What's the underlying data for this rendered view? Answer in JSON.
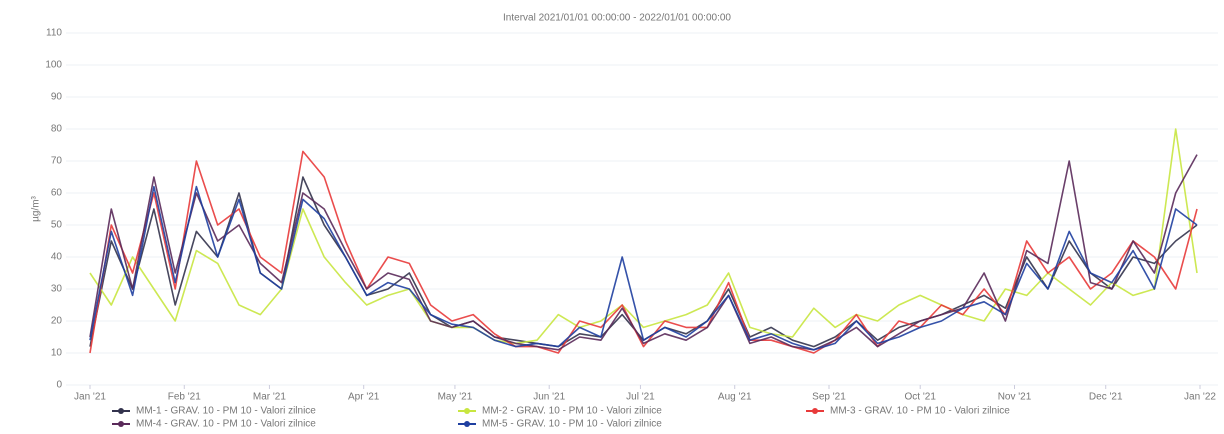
{
  "chart_data": {
    "type": "line",
    "title": "Interval 2021/01/01 00:00:00 - 2022/01/01 00:00:00",
    "y_label": "µg/m³",
    "x": [
      0,
      7,
      14,
      21,
      28,
      35,
      42,
      49,
      56,
      63,
      70,
      77,
      84,
      91,
      98,
      105,
      112,
      119,
      126,
      133,
      140,
      147,
      154,
      161,
      168,
      175,
      182,
      189,
      196,
      203,
      210,
      217,
      224,
      231,
      238,
      245,
      252,
      259,
      266,
      273,
      280,
      287,
      294,
      301,
      308,
      315,
      322,
      329,
      336,
      343,
      350,
      357,
      364
    ],
    "xlim": [
      0,
      365
    ],
    "xticks": [
      {
        "value": 0,
        "label": "Jan '21"
      },
      {
        "value": 31,
        "label": "Feb '21"
      },
      {
        "value": 59,
        "label": "Mar '21"
      },
      {
        "value": 90,
        "label": "Apr '21"
      },
      {
        "value": 120,
        "label": "May '21"
      },
      {
        "value": 151,
        "label": "Jun '21"
      },
      {
        "value": 181,
        "label": "Jul '21"
      },
      {
        "value": 212,
        "label": "Aug '21"
      },
      {
        "value": 243,
        "label": "Sep '21"
      },
      {
        "value": 273,
        "label": "Oct '21"
      },
      {
        "value": 304,
        "label": "Nov '21"
      },
      {
        "value": 334,
        "label": "Dec '21"
      },
      {
        "value": 365,
        "label": "Jan '22"
      }
    ],
    "ylim": [
      0,
      110
    ],
    "yticks": [
      0,
      10,
      20,
      30,
      40,
      50,
      60,
      70,
      80,
      90,
      100,
      110
    ],
    "grid": true,
    "series": [
      {
        "name": "MM-1 - GRAV. 10 - PM 10 - Valori zilnice",
        "color": "#33334d",
        "values": [
          12,
          45,
          30,
          55,
          25,
          48,
          40,
          60,
          35,
          30,
          65,
          50,
          40,
          28,
          30,
          35,
          22,
          18,
          20,
          15,
          14,
          13,
          12,
          16,
          15,
          22,
          14,
          18,
          16,
          20,
          30,
          15,
          18,
          14,
          12,
          15,
          20,
          14,
          18,
          20,
          22,
          25,
          28,
          24,
          40,
          30,
          45,
          35,
          30,
          40,
          38,
          45,
          50
        ]
      },
      {
        "name": "MM-2 - GRAV. 10 - PM 10 - Valori zilnice",
        "color": "#c8e640",
        "values": [
          35,
          25,
          40,
          30,
          20,
          42,
          38,
          25,
          22,
          30,
          55,
          40,
          32,
          25,
          28,
          30,
          20,
          18,
          18,
          14,
          13,
          14,
          22,
          18,
          20,
          25,
          18,
          20,
          22,
          25,
          35,
          18,
          16,
          15,
          24,
          18,
          22,
          20,
          25,
          28,
          25,
          22,
          20,
          30,
          28,
          35,
          30,
          25,
          32,
          28,
          30,
          80,
          35
        ]
      },
      {
        "name": "MM-3 - GRAV. 10 - PM 10 - Valori zilnice",
        "color": "#e83a3a",
        "values": [
          10,
          50,
          35,
          60,
          30,
          70,
          50,
          55,
          40,
          35,
          73,
          65,
          45,
          30,
          40,
          38,
          25,
          20,
          22,
          16,
          12,
          12,
          10,
          20,
          18,
          25,
          12,
          20,
          18,
          18,
          32,
          14,
          14,
          12,
          10,
          14,
          22,
          12,
          20,
          18,
          25,
          22,
          30,
          22,
          45,
          35,
          40,
          30,
          35,
          45,
          40,
          30,
          55
        ]
      },
      {
        "name": "MM-4 - GRAV. 10 - PM 10 - Valori zilnice",
        "color": "#5a2a5a",
        "values": [
          15,
          55,
          30,
          65,
          35,
          60,
          45,
          50,
          38,
          32,
          60,
          55,
          42,
          30,
          35,
          33,
          20,
          18,
          20,
          15,
          13,
          12,
          11,
          15,
          14,
          24,
          13,
          16,
          14,
          18,
          28,
          13,
          15,
          12,
          11,
          14,
          18,
          12,
          16,
          20,
          22,
          24,
          35,
          20,
          42,
          38,
          70,
          32,
          30,
          45,
          35,
          60,
          72
        ]
      },
      {
        "name": "MM-5 - GRAV. 10 - PM 10 - Valori zilnice",
        "color": "#1f3fa0",
        "values": [
          14,
          48,
          28,
          62,
          32,
          62,
          40,
          58,
          35,
          30,
          58,
          52,
          40,
          28,
          32,
          30,
          22,
          19,
          18,
          14,
          12,
          13,
          12,
          18,
          15,
          40,
          14,
          18,
          15,
          20,
          28,
          14,
          16,
          13,
          11,
          13,
          20,
          13,
          15,
          18,
          20,
          24,
          26,
          22,
          38,
          30,
          48,
          35,
          32,
          42,
          30,
          55,
          50
        ]
      }
    ]
  }
}
